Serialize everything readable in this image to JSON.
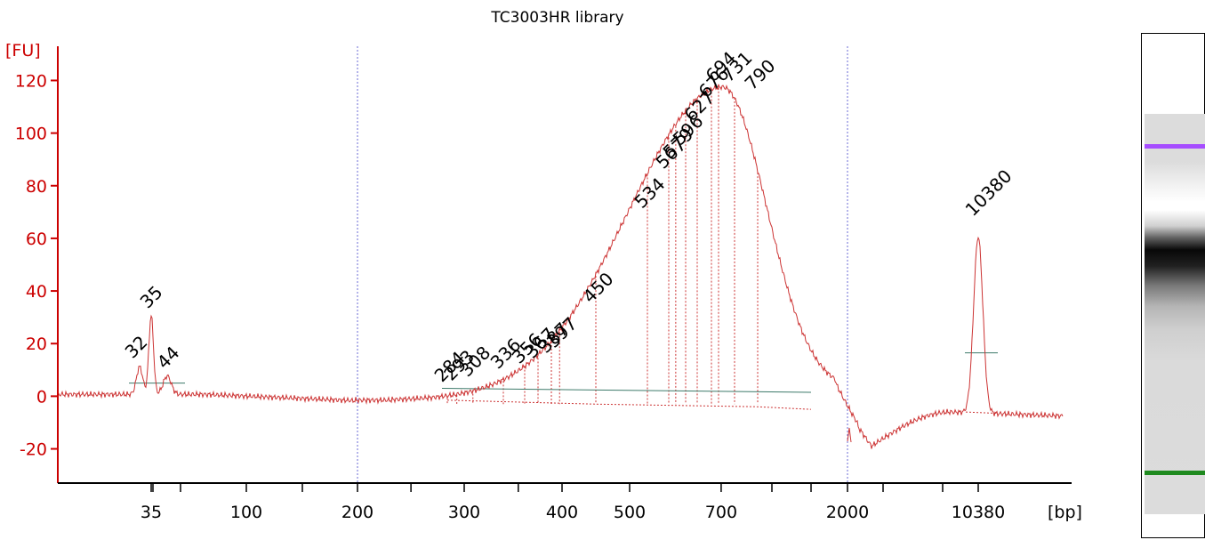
{
  "chart_data": {
    "type": "line",
    "title": "TC3003HR library",
    "ylabel": "[FU]",
    "xlabel": "[bp]",
    "ylim": [
      -33,
      133
    ],
    "yticks": [
      -20,
      0,
      20,
      40,
      60,
      80,
      100,
      120
    ],
    "xticks": [
      "35",
      "100",
      "200",
      "300",
      "400",
      "500",
      "700",
      "2000",
      "10380"
    ],
    "peaks": [
      {
        "size": "35",
        "fu": 31,
        "color": "#2a8a2a",
        "marker": "lower"
      },
      {
        "size": "32",
        "fu": 12
      },
      {
        "size": "44",
        "fu": 8
      },
      {
        "size": "284",
        "fu": 3
      },
      {
        "size": "293",
        "fu": 3.5
      },
      {
        "size": "308",
        "fu": 5
      },
      {
        "size": "336",
        "fu": 8
      },
      {
        "size": "356",
        "fu": 10
      },
      {
        "size": "367",
        "fu": 12
      },
      {
        "size": "387",
        "fu": 14
      },
      {
        "size": "397",
        "fu": 16
      },
      {
        "size": "450",
        "fu": 33
      },
      {
        "size": "534",
        "fu": 69
      },
      {
        "size": "567",
        "fu": 84
      },
      {
        "size": "579",
        "fu": 88
      },
      {
        "size": "596",
        "fu": 93
      },
      {
        "size": "627",
        "fu": 102
      },
      {
        "size": "676",
        "fu": 111
      },
      {
        "size": "694",
        "fu": 117
      },
      {
        "size": "731",
        "fu": 117
      },
      {
        "size": "790",
        "fu": 114
      },
      {
        "size": "10380",
        "fu": 66,
        "color": "#9933ff",
        "marker": "upper"
      }
    ]
  }
}
